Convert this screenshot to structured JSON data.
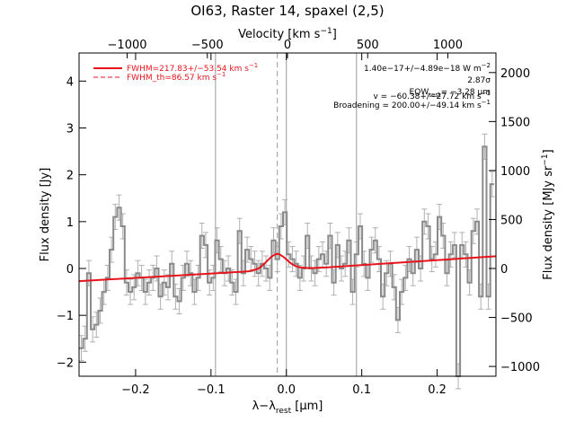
{
  "chart_data": {
    "type": "line",
    "title": "OI63, Raster 14, spaxel (2,5)",
    "xlabel": "λ−λ",
    "xlabel_sub": "rest",
    "xlabel_unit": " [μm]",
    "ylabel": "Flux density [Jy]",
    "top_axis_label": "Velocity [km s",
    "top_axis_label_sup": "−1",
    "top_axis_label_end": "]",
    "right_axis_label": "Flux density [MJy sr",
    "right_axis_label_sup": "−1",
    "right_axis_label_end": "]",
    "xlim": [
      -0.275,
      0.278
    ],
    "ylim": [
      -2.3,
      4.6
    ],
    "top_xlim": [
      -1300,
      1300
    ],
    "right_ylim": [
      -1100,
      2200
    ],
    "xticks": [
      -0.2,
      -0.1,
      0.0,
      0.1,
      0.2
    ],
    "xtick_labels": [
      "−0.2",
      "−0.1",
      "0.0",
      "0.1",
      "0.2"
    ],
    "yticks": [
      -2,
      -1,
      0,
      1,
      2,
      3,
      4
    ],
    "ytick_labels": [
      "−2",
      "−1",
      "0",
      "1",
      "2",
      "3",
      "4"
    ],
    "top_ticks": [
      -1000,
      -500,
      0,
      500,
      1000
    ],
    "top_tick_labels": [
      "−1000",
      "−500",
      "0",
      "500",
      "1000"
    ],
    "right_ticks": [
      -1000,
      -500,
      0,
      500,
      1000,
      1500,
      2000
    ],
    "right_tick_labels": [
      "−1000",
      "−500",
      "0",
      "500",
      "1000",
      "1500",
      "2000"
    ],
    "vertical_lines": [
      -0.094,
      0.0,
      0.093
    ],
    "dashed_vertical_line": -0.012,
    "legend_position": "top-left",
    "legend": [
      {
        "label": "FWHM=217.83+/−53.54 km s",
        "sup": "−1",
        "style": "solid",
        "color": "#e8141c"
      },
      {
        "label": "FWHM_th=86.57 km s",
        "sup": "−1",
        "style": "dashed",
        "color": "#e8141c"
      }
    ],
    "annotations": [
      "1.40e−17+/−4.89e−18 W m",
      "2.87σ",
      "EQW",
      "= −3.28 μm",
      "v = −60.38+/−27.72 km s",
      "Broadening = 200.00+/−49.14 km s"
    ],
    "annotation_parts": {
      "flux_sup": "−2",
      "eqw_sub": "rest",
      "v_sup": "−1",
      "broad_sup": "−1"
    },
    "series": [
      {
        "style": "steps",
        "color": "#8a8a8a",
        "x": [
          -0.272,
          -0.267,
          -0.262,
          -0.257,
          -0.252,
          -0.247,
          -0.242,
          -0.237,
          -0.232,
          -0.227,
          -0.222,
          -0.217,
          -0.212,
          -0.207,
          -0.202,
          -0.197,
          -0.192,
          -0.187,
          -0.182,
          -0.177,
          -0.172,
          -0.167,
          -0.162,
          -0.157,
          -0.152,
          -0.147,
          -0.142,
          -0.137,
          -0.132,
          -0.127,
          -0.122,
          -0.117,
          -0.112,
          -0.107,
          -0.102,
          -0.097,
          -0.092,
          -0.087,
          -0.082,
          -0.077,
          -0.072,
          -0.067,
          -0.062,
          -0.057,
          -0.052,
          -0.047,
          -0.042,
          -0.037,
          -0.032,
          -0.027,
          -0.022,
          -0.017,
          -0.012,
          -0.007,
          -0.002,
          0.003,
          0.008,
          0.013,
          0.018,
          0.023,
          0.028,
          0.033,
          0.038,
          0.043,
          0.048,
          0.053,
          0.058,
          0.063,
          0.068,
          0.073,
          0.078,
          0.083,
          0.088,
          0.093,
          0.098,
          0.103,
          0.108,
          0.113,
          0.118,
          0.123,
          0.128,
          0.133,
          0.138,
          0.143,
          0.148,
          0.153,
          0.158,
          0.163,
          0.168,
          0.173,
          0.178,
          0.183,
          0.188,
          0.193,
          0.198,
          0.203,
          0.208,
          0.213,
          0.218,
          0.223,
          0.228,
          0.233,
          0.238,
          0.243,
          0.248,
          0.253,
          0.258,
          0.263,
          0.268,
          0.273
        ],
        "y": [
          -1.7,
          -1.5,
          -0.1,
          -1.3,
          -1.2,
          -0.9,
          -0.5,
          -0.2,
          0.4,
          1.1,
          1.3,
          0.9,
          -0.3,
          -0.5,
          -0.4,
          -0.1,
          -0.2,
          -0.5,
          -0.3,
          -0.2,
          0.0,
          -0.6,
          -0.3,
          -0.4,
          0.1,
          -0.6,
          -0.7,
          -0.2,
          0.1,
          -0.1,
          -0.5,
          -0.2,
          0.7,
          0.5,
          -0.3,
          -0.2,
          0.6,
          0.2,
          -0.1,
          0.0,
          -0.3,
          -0.5,
          0.8,
          -0.1,
          0.4,
          0.2,
          0.1,
          -0.1,
          0.1,
          0.0,
          -0.2,
          0.6,
          0.2,
          0.9,
          1.2,
          0.3,
          0.2,
          0.1,
          -0.2,
          0.0,
          0.7,
          0.0,
          -0.1,
          0.2,
          0.3,
          0.1,
          0.7,
          -0.3,
          0.5,
          0.0,
          0.1,
          0.6,
          -0.5,
          0.3,
          0.9,
          0.1,
          -0.2,
          0.4,
          0.6,
          0.2,
          -0.6,
          -0.1,
          0.1,
          -0.4,
          -1.1,
          -0.5,
          -0.2,
          0.2,
          -0.1,
          0.4,
          0.0,
          1.0,
          0.9,
          0.2,
          0.3,
          1.1,
          0.7,
          -0.1,
          0.3,
          0.5,
          -2.3,
          0.5,
          0.3,
          -0.3,
          0.8,
          1.0,
          -0.6,
          2.6,
          -0.6,
          1.8
        ]
      },
      {
        "name": "FWHM=217.83+/−53.54 km s",
        "style": "line",
        "color": "#e8141c",
        "x": [
          -0.275,
          -0.06,
          -0.05,
          -0.04,
          -0.035,
          -0.03,
          -0.025,
          -0.02,
          -0.015,
          -0.012,
          -0.009,
          -0.004,
          0.001,
          0.006,
          0.011,
          0.016,
          0.021,
          0.028,
          0.035,
          0.05,
          0.278
        ],
        "y": [
          -0.27,
          -0.07,
          -0.06,
          -0.02,
          0.02,
          0.09,
          0.17,
          0.25,
          0.3,
          0.31,
          0.3,
          0.25,
          0.18,
          0.11,
          0.06,
          0.03,
          0.02,
          0.01,
          0.01,
          0.02,
          0.26
        ]
      }
    ]
  }
}
